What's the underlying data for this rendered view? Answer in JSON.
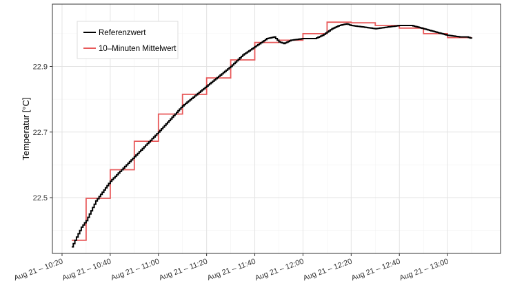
{
  "chart_data": {
    "type": "line",
    "title": "",
    "xlabel": "",
    "ylabel": "Temperatur [°C]",
    "x_unit": "time of day (Aug 21)",
    "xlim": [
      "10:16",
      "13:22"
    ],
    "ylim": [
      22.33,
      23.09
    ],
    "y_ticks": [
      22.5,
      22.7,
      22.9
    ],
    "y_tick_labels": [
      "22.5",
      "22.7",
      "22.9"
    ],
    "x_ticks": [
      "10:20",
      "10:40",
      "11:00",
      "11:20",
      "11:40",
      "12:00",
      "12:20",
      "12:40",
      "13:00"
    ],
    "x_tick_labels": [
      "Aug 21 – 10:20",
      "Aug 21 – 10:40",
      "Aug 21 – 11:00",
      "Aug 21 – 11:20",
      "Aug 21 – 11:40",
      "Aug 21 – 12:00",
      "Aug 21 – 12:20",
      "Aug 21 – 12:40",
      "Aug 21 – 13:00"
    ],
    "grid": true,
    "legend_position": "top-left",
    "series": [
      {
        "name": "Referenzwert",
        "color": "#000000",
        "style": "line",
        "x": [
          "10:24",
          "10:26",
          "10:28",
          "10:30",
          "10:32",
          "10:34",
          "10:36",
          "10:38",
          "10:40",
          "10:44",
          "10:48",
          "10:52",
          "10:56",
          "11:00",
          "11:05",
          "11:10",
          "11:15",
          "11:20",
          "11:25",
          "11:30",
          "11:35",
          "11:40",
          "11:45",
          "11:48",
          "11:50",
          "11:52",
          "11:55",
          "12:00",
          "12:05",
          "12:08",
          "12:10",
          "12:12",
          "12:15",
          "12:18",
          "12:20",
          "12:25",
          "12:30",
          "12:35",
          "12:40",
          "12:45",
          "12:50",
          "12:55",
          "13:00",
          "13:05",
          "13:08",
          "13:10"
        ],
        "y": [
          22.35,
          22.38,
          22.41,
          22.43,
          22.46,
          22.49,
          22.51,
          22.53,
          22.55,
          22.58,
          22.61,
          22.64,
          22.67,
          22.7,
          22.74,
          22.78,
          22.81,
          22.84,
          22.87,
          22.9,
          22.935,
          22.96,
          22.985,
          22.99,
          22.975,
          22.97,
          22.98,
          22.985,
          22.985,
          22.995,
          23.005,
          23.015,
          23.025,
          23.03,
          23.025,
          23.02,
          23.015,
          23.02,
          23.025,
          23.025,
          23.015,
          23.005,
          22.995,
          22.99,
          22.99,
          22.985
        ]
      },
      {
        "name": "10–Minuten Mittelwert",
        "color": "#e8595a",
        "style": "step",
        "segments": [
          {
            "from": "10:24",
            "to": "10:30",
            "value": 22.37
          },
          {
            "from": "10:30",
            "to": "10:40",
            "value": 22.498
          },
          {
            "from": "10:40",
            "to": "10:50",
            "value": 22.585
          },
          {
            "from": "10:50",
            "to": "11:00",
            "value": 22.672
          },
          {
            "from": "11:00",
            "to": "11:10",
            "value": 22.755
          },
          {
            "from": "11:10",
            "to": "11:20",
            "value": 22.815
          },
          {
            "from": "11:20",
            "to": "11:30",
            "value": 22.865
          },
          {
            "from": "11:30",
            "to": "11:40",
            "value": 22.92
          },
          {
            "from": "11:40",
            "to": "11:50",
            "value": 22.973
          },
          {
            "from": "11:50",
            "to": "12:00",
            "value": 22.98
          },
          {
            "from": "12:00",
            "to": "12:10",
            "value": 23.0
          },
          {
            "from": "12:10",
            "to": "12:20",
            "value": 23.035
          },
          {
            "from": "12:20",
            "to": "12:30",
            "value": 23.033
          },
          {
            "from": "12:30",
            "to": "12:40",
            "value": 23.025
          },
          {
            "from": "12:40",
            "to": "12:50",
            "value": 23.017
          },
          {
            "from": "12:50",
            "to": "13:00",
            "value": 23.0
          },
          {
            "from": "13:00",
            "to": "13:10",
            "value": 22.988
          }
        ]
      }
    ]
  }
}
